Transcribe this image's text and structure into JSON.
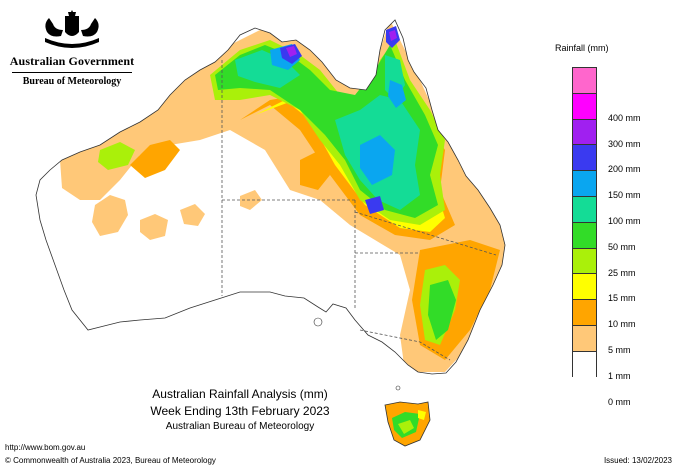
{
  "branding": {
    "government": "Australian Government",
    "bureau": "Bureau of Meteorology"
  },
  "legend": {
    "title": "Rainfall (mm)",
    "items": [
      {
        "label": "",
        "color": "#ff66cc"
      },
      {
        "label": "400 mm",
        "color": "#ff00ff"
      },
      {
        "label": "300 mm",
        "color": "#a020f0"
      },
      {
        "label": "200 mm",
        "color": "#3a3af0"
      },
      {
        "label": "150 mm",
        "color": "#0aa6f0"
      },
      {
        "label": "100 mm",
        "color": "#14dc96"
      },
      {
        "label": "50 mm",
        "color": "#32dc28"
      },
      {
        "label": "25 mm",
        "color": "#aaf00a"
      },
      {
        "label": "15 mm",
        "color": "#ffff00"
      },
      {
        "label": "10 mm",
        "color": "#ffa500"
      },
      {
        "label": "5 mm",
        "color": "#ffc878"
      },
      {
        "label": "1 mm",
        "color": "#ffffff"
      },
      {
        "label": "0 mm",
        "color": null
      }
    ]
  },
  "caption": {
    "line1": "Australian Rainfall Analysis (mm)",
    "line2": "Week Ending 13th February 2023",
    "line3": "Australian Bureau of Meteorology"
  },
  "footer": {
    "url": "http://www.bom.gov.au",
    "copyright": "© Commonwealth of Australia 2023, Bureau of Meteorology",
    "issued": "Issued: 13/02/2023"
  }
}
